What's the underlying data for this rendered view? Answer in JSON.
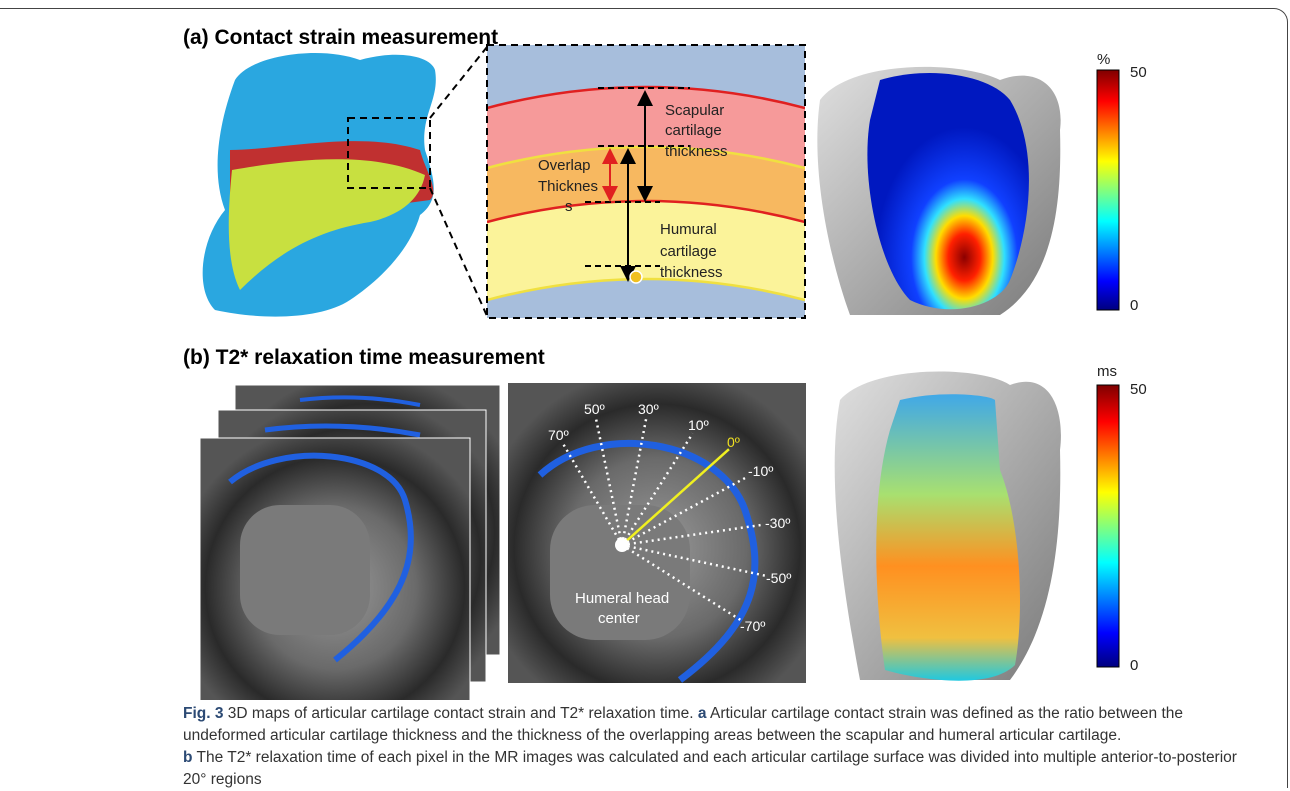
{
  "panel_a": {
    "title": "(a) Contact strain measurement",
    "inset": {
      "scapular": [
        "Scapular",
        "cartilage",
        "thickness"
      ],
      "overlap": [
        "Overlap",
        "Thicknes",
        "s"
      ],
      "humural": [
        "Humural",
        "cartilage",
        "thickness"
      ]
    },
    "colorbar": {
      "unit": "%",
      "max": 50,
      "min": 0
    }
  },
  "panel_b": {
    "title": "(b) T2* relaxation time measurement",
    "angles": [
      "70º",
      "50º",
      "30º",
      "10º",
      "0º",
      "-10º",
      "-30º",
      "-50º",
      "-70º"
    ],
    "center_label": [
      "Humeral head",
      "center"
    ],
    "colorbar": {
      "unit": "ms",
      "max": 50,
      "min": 0
    }
  },
  "caption": {
    "label": "Fig. 3",
    "title": "3D maps of articular cartilage contact strain and T2* relaxation time.",
    "a_label": "a",
    "a_text": "Articular cartilage contact strain was defined as the ratio between the undeformed articular cartilage thickness and the thickness of the overlapping areas between the scapular and humeral articular cartilage.",
    "b_label": "b",
    "b_text": "The T2* relaxation time of each pixel in the MR images was calculated and each articular cartilage surface was divided into multiple anterior-to-posterior 20° regions"
  }
}
